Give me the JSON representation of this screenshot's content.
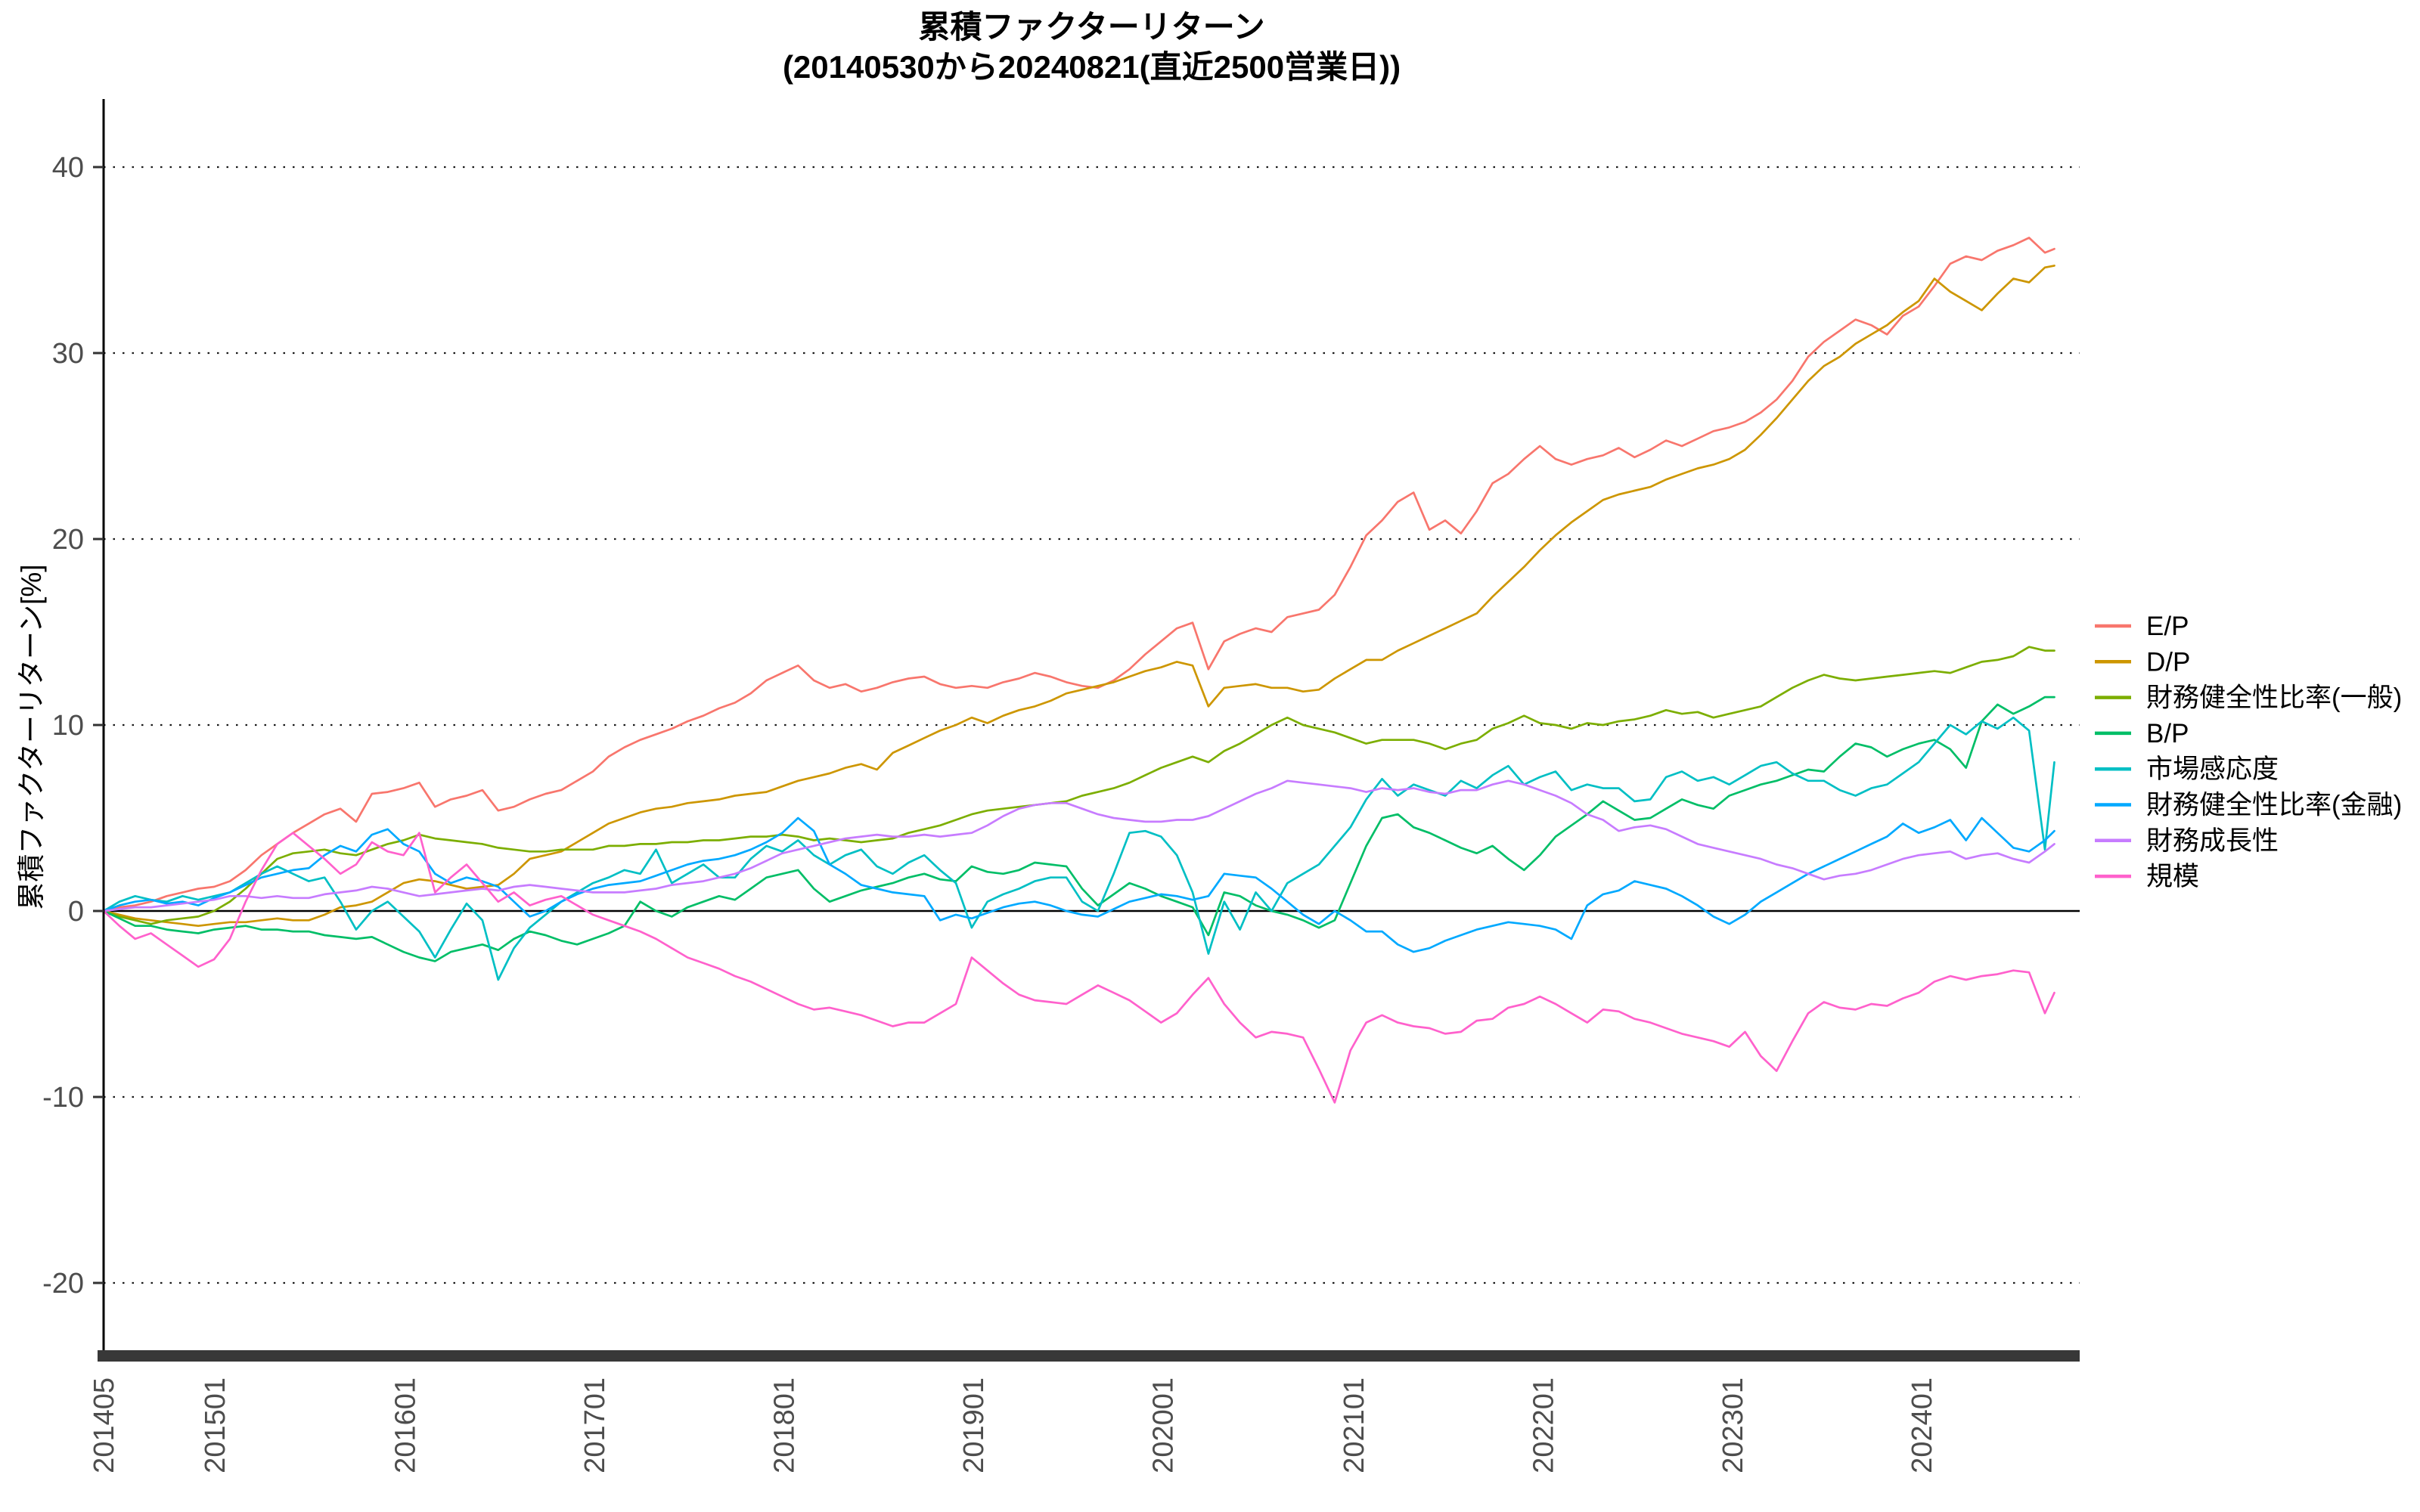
{
  "header": {
    "title": "累積ファクターリターン",
    "subtitle": "(20140530から20240821(直近2500営業日))"
  },
  "chart_data": {
    "type": "line",
    "title": "累積ファクターリターン",
    "subtitle": "(20140530から20240821(直近2500営業日))",
    "ylabel": "累積ファクターリターン[%]",
    "ylim": [
      -23.5,
      43.5
    ],
    "yticks": [
      40,
      30,
      20,
      10,
      0,
      -10,
      -20
    ],
    "grid": "dotted horizontal gridlines, solid line at 0",
    "legend_position": "right",
    "x_unit": "months since 2014-05 (daily data downsampled monthly)",
    "xticks": [
      {
        "label": "201405",
        "m": 0
      },
      {
        "label": "201501",
        "m": 7.05
      },
      {
        "label": "201601",
        "m": 19.1
      },
      {
        "label": "201701",
        "m": 31.1
      },
      {
        "label": "201801",
        "m": 43.1
      },
      {
        "label": "201901",
        "m": 55.1
      },
      {
        "label": "202001",
        "m": 67.1
      },
      {
        "label": "202101",
        "m": 79.2
      },
      {
        "label": "202201",
        "m": 91.2
      },
      {
        "label": "202301",
        "m": 103.2
      },
      {
        "label": "202401",
        "m": 115.2
      }
    ],
    "series": [
      {
        "name": "E/P",
        "color": "#F8766D",
        "values": [
          0,
          0.2,
          0.3,
          0.5,
          0.8,
          1.0,
          1.2,
          1.3,
          1.6,
          2.2,
          3.0,
          3.6,
          4.2,
          4.7,
          5.2,
          5.5,
          4.8,
          6.3,
          6.4,
          6.6,
          6.9,
          5.6,
          6.0,
          6.2,
          6.5,
          5.4,
          5.6,
          6.0,
          6.3,
          6.5,
          7.0,
          7.5,
          8.3,
          8.8,
          9.2,
          9.5,
          9.8,
          10.2,
          10.5,
          10.9,
          11.2,
          11.7,
          12.4,
          12.8,
          13.2,
          12.4,
          12.0,
          12.2,
          11.8,
          12.0,
          12.3,
          12.5,
          12.6,
          12.2,
          12.0,
          12.1,
          12.0,
          12.3,
          12.5,
          12.8,
          12.6,
          12.3,
          12.1,
          12.0,
          12.4,
          13.0,
          13.8,
          14.5,
          15.2,
          15.5,
          13.0,
          14.5,
          14.9,
          15.2,
          15.0,
          15.8,
          16.0,
          16.2,
          17.0,
          18.5,
          20.2,
          21.0,
          22.0,
          22.5,
          20.5,
          21.0,
          20.3,
          21.5,
          23.0,
          23.5,
          24.3,
          25.0,
          24.3,
          24.0,
          24.3,
          24.5,
          24.9,
          24.4,
          24.8,
          25.3,
          25.0,
          25.4,
          25.8,
          26.0,
          26.3,
          26.8,
          27.5,
          28.5,
          29.8,
          30.6,
          31.2,
          31.8,
          31.5,
          31.0,
          32.0,
          32.5,
          33.6,
          34.8,
          35.2,
          35.0,
          35.5,
          35.8,
          36.2,
          35.4
        ],
        "tail": [
          [
            123.6,
            35.6
          ]
        ]
      },
      {
        "name": "D/P",
        "color": "#CD9600",
        "values": [
          0,
          -0.2,
          -0.4,
          -0.5,
          -0.6,
          -0.7,
          -0.8,
          -0.7,
          -0.6,
          -0.6,
          -0.5,
          -0.4,
          -0.5,
          -0.5,
          -0.2,
          0.2,
          0.3,
          0.5,
          1.0,
          1.5,
          1.7,
          1.6,
          1.4,
          1.2,
          1.3,
          1.4,
          2.0,
          2.8,
          3.0,
          3.2,
          3.7,
          4.2,
          4.7,
          5.0,
          5.3,
          5.5,
          5.6,
          5.8,
          5.9,
          6.0,
          6.2,
          6.3,
          6.4,
          6.7,
          7.0,
          7.2,
          7.4,
          7.7,
          7.9,
          7.6,
          8.5,
          8.9,
          9.3,
          9.7,
          10.0,
          10.4,
          10.1,
          10.5,
          10.8,
          11.0,
          11.3,
          11.7,
          11.9,
          12.1,
          12.3,
          12.6,
          12.9,
          13.1,
          13.4,
          13.2,
          11.0,
          12.0,
          12.1,
          12.2,
          12.0,
          12.0,
          11.8,
          11.9,
          12.5,
          13.0,
          13.5,
          13.5,
          14.0,
          14.4,
          14.8,
          15.2,
          15.6,
          16.0,
          16.9,
          17.7,
          18.5,
          19.4,
          20.2,
          20.9,
          21.5,
          22.1,
          22.4,
          22.6,
          22.8,
          23.2,
          23.5,
          23.8,
          24.0,
          24.3,
          24.8,
          25.6,
          26.5,
          27.5,
          28.5,
          29.3,
          29.8,
          30.5,
          31.0,
          31.5,
          32.2,
          32.8,
          34.0,
          33.3,
          32.8,
          32.3,
          33.2,
          34.0,
          33.8,
          34.6
        ],
        "tail": [
          [
            123.6,
            34.7
          ]
        ]
      },
      {
        "name": "財務健全性比率(一般)",
        "color": "#7CAE00",
        "values": [
          0,
          -0.3,
          -0.5,
          -0.7,
          -0.5,
          -0.4,
          -0.3,
          0.0,
          0.5,
          1.2,
          2.0,
          2.8,
          3.1,
          3.2,
          3.3,
          3.1,
          3.0,
          3.3,
          3.6,
          3.8,
          4.1,
          3.9,
          3.8,
          3.7,
          3.6,
          3.4,
          3.3,
          3.2,
          3.2,
          3.3,
          3.3,
          3.3,
          3.5,
          3.5,
          3.6,
          3.6,
          3.7,
          3.7,
          3.8,
          3.8,
          3.9,
          4.0,
          4.0,
          4.1,
          4.0,
          3.8,
          3.9,
          3.8,
          3.7,
          3.8,
          3.9,
          4.2,
          4.4,
          4.6,
          4.9,
          5.2,
          5.4,
          5.5,
          5.6,
          5.7,
          5.8,
          5.9,
          6.2,
          6.4,
          6.6,
          6.9,
          7.3,
          7.7,
          8.0,
          8.3,
          8.0,
          8.6,
          9.0,
          9.5,
          10.0,
          10.4,
          10.0,
          9.8,
          9.6,
          9.3,
          9.0,
          9.2,
          9.2,
          9.2,
          9.0,
          8.7,
          9.0,
          9.2,
          9.8,
          10.1,
          10.5,
          10.1,
          10.0,
          9.8,
          10.1,
          10.0,
          10.2,
          10.3,
          10.5,
          10.8,
          10.6,
          10.7,
          10.4,
          10.6,
          10.8,
          11.0,
          11.5,
          12.0,
          12.4,
          12.7,
          12.5,
          12.4,
          12.5,
          12.6,
          12.7,
          12.8,
          12.9,
          12.8,
          13.1,
          13.4,
          13.5,
          13.7,
          14.2,
          14.0
        ],
        "tail": [
          [
            123.6,
            14.0
          ]
        ]
      },
      {
        "name": "B/P",
        "color": "#00BE67",
        "values": [
          0,
          -0.4,
          -0.8,
          -0.8,
          -1.0,
          -1.1,
          -1.2,
          -1.0,
          -0.9,
          -0.8,
          -1.0,
          -1.0,
          -1.1,
          -1.1,
          -1.3,
          -1.4,
          -1.5,
          -1.4,
          -1.8,
          -2.2,
          -2.5,
          -2.7,
          -2.2,
          -2.0,
          -1.8,
          -2.1,
          -1.5,
          -1.1,
          -1.3,
          -1.6,
          -1.8,
          -1.5,
          -1.2,
          -0.8,
          0.5,
          0.0,
          -0.3,
          0.2,
          0.5,
          0.8,
          0.6,
          1.2,
          1.8,
          2.0,
          2.2,
          1.2,
          0.5,
          0.8,
          1.1,
          1.3,
          1.5,
          1.8,
          2.0,
          1.7,
          1.6,
          2.4,
          2.1,
          2.0,
          2.2,
          2.6,
          2.5,
          2.4,
          1.2,
          0.3,
          0.9,
          1.5,
          1.2,
          0.8,
          0.5,
          0.2,
          -1.3,
          1.0,
          0.8,
          0.3,
          0.0,
          -0.2,
          -0.5,
          -0.9,
          -0.5,
          1.5,
          3.5,
          5.0,
          5.2,
          4.5,
          4.2,
          3.8,
          3.4,
          3.1,
          3.5,
          2.8,
          2.2,
          3.0,
          4.0,
          4.6,
          5.2,
          5.9,
          5.4,
          4.9,
          5.0,
          5.5,
          6.0,
          5.7,
          5.5,
          6.2,
          6.5,
          6.8,
          7.0,
          7.3,
          7.6,
          7.5,
          8.3,
          9.0,
          8.8,
          8.3,
          8.7,
          9.0,
          9.2,
          8.7,
          7.7,
          10.2,
          11.1,
          10.6,
          11.0,
          11.5
        ],
        "tail": [
          [
            123.6,
            11.5
          ]
        ]
      },
      {
        "name": "市場感応度",
        "color": "#00BFC4",
        "values": [
          0,
          0.5,
          0.8,
          0.6,
          0.5,
          0.8,
          0.6,
          0.8,
          1.0,
          1.5,
          2.0,
          2.4,
          2.0,
          1.6,
          1.8,
          0.5,
          -1.0,
          0.0,
          0.5,
          -0.3,
          -1.1,
          -2.5,
          -1.0,
          0.4,
          -0.5,
          -3.7,
          -2.0,
          -0.9,
          -0.2,
          0.5,
          1.0,
          1.5,
          1.8,
          2.2,
          2.0,
          3.3,
          1.5,
          2.0,
          2.5,
          1.8,
          1.8,
          2.8,
          3.5,
          3.2,
          3.8,
          3.0,
          2.5,
          3.0,
          3.3,
          2.4,
          2.0,
          2.6,
          3.0,
          2.2,
          1.5,
          -0.9,
          0.5,
          0.9,
          1.2,
          1.6,
          1.8,
          1.8,
          0.5,
          0.0,
          2.0,
          4.2,
          4.3,
          4.0,
          3.0,
          1.0,
          -2.3,
          0.5,
          -1.0,
          1.0,
          0.0,
          1.5,
          2.0,
          2.5,
          3.5,
          4.5,
          6.0,
          7.1,
          6.2,
          6.8,
          6.5,
          6.2,
          7.0,
          6.6,
          7.3,
          7.8,
          6.8,
          7.2,
          7.5,
          6.5,
          6.8,
          6.6,
          6.6,
          5.9,
          6.0,
          7.2,
          7.5,
          7.0,
          7.2,
          6.8,
          7.3,
          7.8,
          8.0,
          7.4,
          7.0,
          7.0,
          6.5,
          6.2,
          6.6,
          6.8,
          7.4,
          8.0,
          9.0,
          10.0,
          9.5,
          10.2,
          9.8,
          10.4,
          9.7,
          3.3
        ],
        "tail": [
          [
            123.6,
            8.0
          ]
        ]
      },
      {
        "name": "財務健全性比率(金融)",
        "color": "#00A9FF",
        "values": [
          0,
          0.3,
          0.5,
          0.6,
          0.4,
          0.5,
          0.3,
          0.7,
          1.0,
          1.4,
          1.8,
          2.0,
          2.2,
          2.3,
          3.0,
          3.5,
          3.2,
          4.1,
          4.4,
          3.6,
          3.2,
          2.0,
          1.5,
          1.8,
          1.6,
          1.3,
          0.5,
          -0.3,
          0.0,
          0.5,
          0.9,
          1.2,
          1.4,
          1.5,
          1.6,
          1.9,
          2.2,
          2.5,
          2.7,
          2.8,
          3.0,
          3.3,
          3.7,
          4.2,
          5.0,
          4.3,
          2.5,
          2.0,
          1.4,
          1.2,
          1.0,
          0.9,
          0.8,
          -0.5,
          -0.2,
          -0.4,
          -0.1,
          0.2,
          0.4,
          0.5,
          0.3,
          0.0,
          -0.2,
          -0.3,
          0.1,
          0.5,
          0.7,
          0.9,
          0.8,
          0.6,
          0.8,
          2.0,
          1.9,
          1.8,
          1.2,
          0.5,
          -0.2,
          -0.7,
          0.0,
          -0.5,
          -1.1,
          -1.1,
          -1.8,
          -2.2,
          -2.0,
          -1.6,
          -1.3,
          -1.0,
          -0.8,
          -0.6,
          -0.7,
          -0.8,
          -1.0,
          -1.5,
          0.3,
          0.9,
          1.1,
          1.6,
          1.4,
          1.2,
          0.8,
          0.3,
          -0.3,
          -0.7,
          -0.2,
          0.5,
          1.0,
          1.5,
          2.0,
          2.4,
          2.8,
          3.2,
          3.6,
          4.0,
          4.7,
          4.2,
          4.5,
          4.9,
          3.8,
          5.0,
          4.2,
          3.4,
          3.2,
          3.8
        ],
        "tail": [
          [
            123.6,
            4.3
          ]
        ]
      },
      {
        "name": "財務成長性",
        "color": "#C77CFF",
        "values": [
          0,
          0.1,
          0.2,
          0.2,
          0.3,
          0.4,
          0.5,
          0.6,
          0.8,
          0.8,
          0.7,
          0.8,
          0.7,
          0.7,
          0.9,
          1.0,
          1.1,
          1.3,
          1.2,
          1.0,
          0.8,
          0.9,
          1.0,
          1.1,
          1.2,
          1.1,
          1.3,
          1.4,
          1.3,
          1.2,
          1.1,
          1.0,
          1.0,
          1.0,
          1.1,
          1.2,
          1.4,
          1.5,
          1.6,
          1.8,
          2.0,
          2.3,
          2.7,
          3.1,
          3.3,
          3.5,
          3.7,
          3.9,
          4.0,
          4.1,
          4.0,
          4.0,
          4.1,
          4.0,
          4.1,
          4.2,
          4.6,
          5.1,
          5.5,
          5.7,
          5.8,
          5.8,
          5.5,
          5.2,
          5.0,
          4.9,
          4.8,
          4.8,
          4.9,
          4.9,
          5.1,
          5.5,
          5.9,
          6.3,
          6.6,
          7.0,
          6.9,
          6.8,
          6.7,
          6.6,
          6.4,
          6.6,
          6.5,
          6.6,
          6.4,
          6.3,
          6.5,
          6.5,
          6.8,
          7.0,
          6.8,
          6.5,
          6.2,
          5.8,
          5.2,
          4.9,
          4.3,
          4.5,
          4.6,
          4.4,
          4.0,
          3.6,
          3.4,
          3.2,
          3.0,
          2.8,
          2.5,
          2.3,
          2.0,
          1.7,
          1.9,
          2.0,
          2.2,
          2.5,
          2.8,
          3.0,
          3.1,
          3.2,
          2.8,
          3.0,
          3.1,
          2.8,
          2.6,
          3.2
        ],
        "tail": [
          [
            123.6,
            3.6
          ]
        ]
      },
      {
        "name": "規模",
        "color": "#FF61CC",
        "values": [
          0,
          -0.8,
          -1.5,
          -1.2,
          -1.8,
          -2.4,
          -3.0,
          -2.6,
          -1.5,
          0.5,
          2.2,
          3.6,
          4.2,
          3.5,
          2.8,
          2.0,
          2.5,
          3.7,
          3.2,
          3.0,
          4.2,
          1.0,
          1.8,
          2.5,
          1.5,
          0.5,
          1.0,
          0.3,
          0.6,
          0.8,
          0.3,
          -0.2,
          -0.5,
          -0.8,
          -1.1,
          -1.5,
          -2.0,
          -2.5,
          -2.8,
          -3.1,
          -3.5,
          -3.8,
          -4.2,
          -4.6,
          -5.0,
          -5.3,
          -5.2,
          -5.4,
          -5.6,
          -5.9,
          -6.2,
          -6.0,
          -6.0,
          -5.5,
          -5.0,
          -2.5,
          -3.2,
          -3.9,
          -4.5,
          -4.8,
          -4.9,
          -5.0,
          -4.5,
          -4.0,
          -4.4,
          -4.8,
          -5.4,
          -6.0,
          -5.5,
          -4.5,
          -3.6,
          -5.0,
          -6.0,
          -6.8,
          -6.5,
          -6.6,
          -6.8,
          -8.5,
          -10.3,
          -7.5,
          -6.0,
          -5.6,
          -6.0,
          -6.2,
          -6.3,
          -6.6,
          -6.5,
          -5.9,
          -5.8,
          -5.2,
          -5.0,
          -4.6,
          -5.0,
          -5.5,
          -6.0,
          -5.3,
          -5.4,
          -5.8,
          -6.0,
          -6.3,
          -6.6,
          -6.8,
          -7.0,
          -7.3,
          -6.5,
          -7.8,
          -8.6,
          -7.0,
          -5.5,
          -4.9,
          -5.2,
          -5.3,
          -5.0,
          -5.1,
          -4.7,
          -4.4,
          -3.8,
          -3.5,
          -3.7,
          -3.5,
          -3.4,
          -3.2,
          -3.3,
          -5.5
        ],
        "tail": [
          [
            123.6,
            -4.4
          ]
        ]
      }
    ]
  },
  "legend": {
    "items": [
      "E/P",
      "D/P",
      "財務健全性比率(一般)",
      "B/P",
      "市場感応度",
      "財務健全性比率(金融)",
      "財務成長性",
      "規模"
    ]
  },
  "colors": {
    "tick_label": "#4d4d4d",
    "grid": "#1a1a1a",
    "axis_spine": "#000000",
    "bottom_bar": "#383838"
  }
}
